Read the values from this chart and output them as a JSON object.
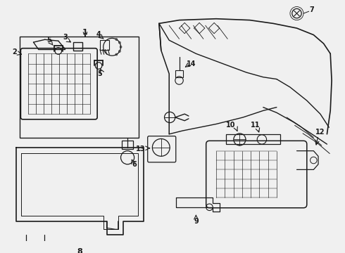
{
  "bg_color": "#f0f0f0",
  "line_color": "#1a1a1a",
  "label_color": "#1a1a1a",
  "fig_w": 4.9,
  "fig_h": 3.6,
  "dpi": 100
}
